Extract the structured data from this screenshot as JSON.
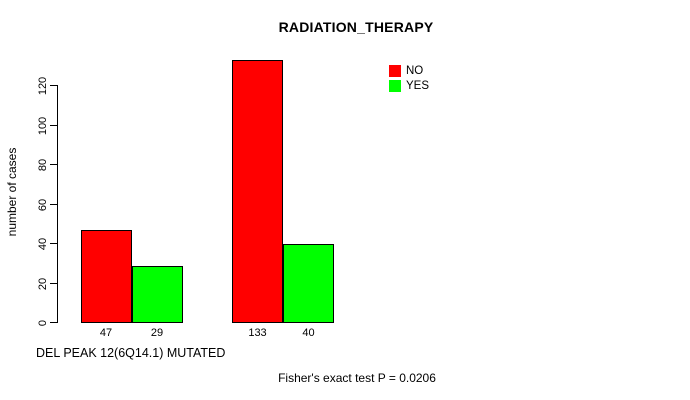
{
  "chart_data": {
    "type": "bar",
    "title": "RADIATION_THERAPY",
    "ylabel": "number of cases",
    "xlabel": "DEL PEAK 12(6Q14.1) MUTATED",
    "annotation": "Fisher's exact test P = 0.0206",
    "yticks": [
      0,
      20,
      40,
      60,
      80,
      100,
      120
    ],
    "ylim": [
      0,
      133
    ],
    "grid": false,
    "legend_position": "top-right",
    "colors": {
      "no": "#ff0000",
      "yes": "#00ff00",
      "axis": "#000000",
      "background": "#ffffff"
    },
    "series": [
      {
        "name": "NO",
        "color": "#ff0000"
      },
      {
        "name": "YES",
        "color": "#00ff00"
      }
    ],
    "groups": [
      {
        "bars": [
          {
            "series": "NO",
            "value": 47
          },
          {
            "series": "YES",
            "value": 29
          }
        ]
      },
      {
        "bars": [
          {
            "series": "NO",
            "value": 133
          },
          {
            "series": "YES",
            "value": 40
          }
        ]
      }
    ]
  }
}
